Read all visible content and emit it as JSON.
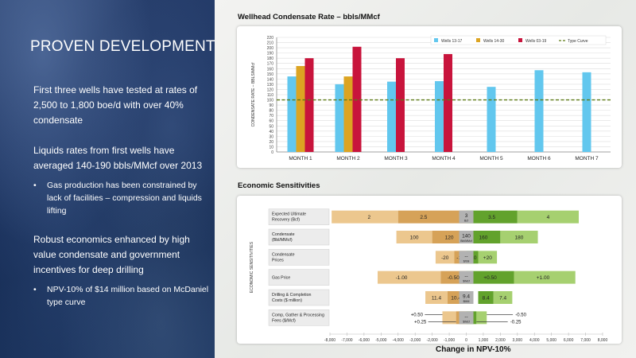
{
  "left": {
    "title": "PROVEN DEVELOPMENT AREA",
    "bullets": [
      {
        "type": "main",
        "text": "First three wells have tested at rates of 2,500 to 1,800 boe/d with over 40% condensate"
      },
      {
        "type": "main",
        "text": "Liquids rates from first wells have averaged 140-190 bbls/MMcf over 2013"
      },
      {
        "type": "sub",
        "text": "Gas production has been constrained by lack of facilities – compression and liquids lifting"
      },
      {
        "type": "main",
        "text": "Robust economics enhanced by high value condensate and government incentives for deep drilling"
      },
      {
        "type": "sub",
        "text": "NPV-10% of $14 million based on McDaniel type curve"
      }
    ]
  },
  "colors": {
    "blue": "#62c7ee",
    "gold": "#dca422",
    "red": "#c8143c",
    "type_curve": "#5d7a14",
    "green_dark": "#62a22c",
    "green_light": "#a6d070",
    "tan_light": "#ecc78e",
    "tan_dark": "#d6a258",
    "gray": "#b2b2b2"
  },
  "chart_data": [
    {
      "type": "bar",
      "title": "Wellhead Condensate Rate – bbls/MMcf",
      "ylabel": "CONDENSATE RATE – BBLS/MMcf",
      "ylim": [
        0,
        220
      ],
      "yticks": [
        0,
        10,
        20,
        30,
        40,
        50,
        60,
        70,
        80,
        90,
        100,
        110,
        120,
        130,
        140,
        150,
        160,
        170,
        180,
        190,
        200,
        210,
        220
      ],
      "categories": [
        "MONTH 1",
        "MONTH 2",
        "MONTH 3",
        "MONTH 4",
        "MONTH 5",
        "MONTH 6",
        "MONTH 7"
      ],
      "series": [
        {
          "name": "Wells 13-17",
          "color": "#62c7ee",
          "values": [
            145,
            130,
            135,
            136,
            125,
            157,
            153
          ]
        },
        {
          "name": "Wells 14-30",
          "color": "#dca422",
          "values": [
            165,
            145,
            null,
            null,
            null,
            null,
            null
          ]
        },
        {
          "name": "Wells 03-19",
          "color": "#c8143c",
          "values": [
            180,
            202,
            180,
            188,
            null,
            null,
            null
          ]
        }
      ],
      "type_curve": {
        "name": "Type Curve",
        "value": 100
      },
      "grid": true,
      "legend": "top-right"
    },
    {
      "type": "bar",
      "subtype": "tornado",
      "title": "Economic Sensitivities",
      "ylabel": "ECONOMIC SENSITIVITIES",
      "xlabel": "Change in NPV-10%",
      "xlim": [
        -8000,
        8000
      ],
      "xticks": [
        -8000,
        -7000,
        -6000,
        -5000,
        -4000,
        -3000,
        -2000,
        -1000,
        0,
        1000,
        2000,
        3000,
        4000,
        5000,
        6000,
        7000,
        8000
      ],
      "xtick_labels": [
        "-8,000",
        "-7,000",
        "-6,000",
        "-5,000",
        "-4,000",
        "-3,000",
        "-2,000",
        "-1,000",
        "0",
        "1,000",
        "2,000",
        "3,000",
        "4,000",
        "5,000",
        "6,000",
        "7,000",
        "8,000"
      ],
      "rows": [
        {
          "label": [
            "Expected Ultimate",
            "Recovery (Bcf)"
          ],
          "segments": [
            {
              "from": -7900,
              "to": -4000,
              "color": "#ecc78e",
              "label": "2",
              "label_at": -5700
            },
            {
              "from": -4000,
              "to": 0,
              "color": "#d6a258",
              "label": "2.5",
              "label_at": -2500
            },
            {
              "from": 0,
              "to": 3000,
              "color": "#62a22c",
              "label": "3.5",
              "label_at": 1500
            },
            {
              "from": 3000,
              "to": 6600,
              "color": "#a6d070",
              "label": "4",
              "label_at": 4800
            }
          ],
          "base": {
            "value": "3",
            "unit": "Bcf"
          }
        },
        {
          "label": [
            "Condensate",
            "(Bbl/MMcf)"
          ],
          "segments": [
            {
              "from": -4100,
              "to": -2000,
              "color": "#ecc78e",
              "label": "100",
              "label_at": -3050
            },
            {
              "from": -2000,
              "to": 0,
              "color": "#d6a258",
              "label": "120",
              "label_at": -1000
            },
            {
              "from": 0,
              "to": 2000,
              "color": "#62a22c",
              "label": "160",
              "label_at": 1000
            },
            {
              "from": 2000,
              "to": 4200,
              "color": "#a6d070",
              "label": "180",
              "label_at": 3100
            }
          ],
          "base": {
            "value": "140",
            "unit": "Bbl/MMcf"
          }
        },
        {
          "label": [
            "Condensate",
            "Prices"
          ],
          "segments": [
            {
              "from": -1800,
              "to": -700,
              "color": "#ecc78e",
              "label": "-20",
              "label_at": -1250
            },
            {
              "from": -700,
              "to": 0,
              "color": "#d6a258",
              "label": "-10",
              "label_at": -350
            },
            {
              "from": 0,
              "to": 700,
              "color": "#62a22c",
              "label": "+10",
              "label_at": 350
            },
            {
              "from": 700,
              "to": 1800,
              "color": "#a6d070",
              "label": "+20",
              "label_at": 1250
            }
          ],
          "base": {
            "value": "--",
            "unit": "$/bbl"
          }
        },
        {
          "label": [
            "Gas Price"
          ],
          "segments": [
            {
              "from": -5200,
              "to": -1500,
              "color": "#ecc78e",
              "label": "-1.00",
              "label_at": -3800
            },
            {
              "from": -1500,
              "to": 0,
              "color": "#d6a258",
              "label": "-0.50",
              "label_at": -750
            },
            {
              "from": 0,
              "to": 2800,
              "color": "#62a22c",
              "label": "+0.50",
              "label_at": 1400
            },
            {
              "from": 2800,
              "to": 6400,
              "color": "#a6d070",
              "label": "+1.00",
              "label_at": 4500
            }
          ],
          "base": {
            "value": "--",
            "unit": "$/Mcf"
          }
        },
        {
          "label": [
            "Drilling & Completion",
            "Costs ($ million)"
          ],
          "segments": [
            {
              "from": -2400,
              "to": -1100,
              "color": "#ecc78e",
              "label": "11.4",
              "label_at": -1750
            },
            {
              "from": -1100,
              "to": -100,
              "color": "#d6a258",
              "label": "10.4",
              "label_at": -600
            },
            {
              "from": 700,
              "to": 1600,
              "color": "#62a22c",
              "label": "8.4",
              "label_at": 1150
            },
            {
              "from": 1600,
              "to": 2700,
              "color": "#a6d070",
              "label": "7.4",
              "label_at": 2150
            }
          ],
          "base": {
            "value": "9.4",
            "unit": "$MM"
          }
        },
        {
          "label": [
            "Comp, Gather & Processing",
            "Fees ($/Mcf)"
          ],
          "segments": [
            {
              "from": -1400,
              "to": -600,
              "color": "#ecc78e",
              "label": "",
              "label_at": -1000
            },
            {
              "from": -600,
              "to": 0,
              "color": "#d6a258",
              "label": "",
              "label_at": -300
            },
            {
              "from": 0,
              "to": 600,
              "color": "#62a22c",
              "label": "",
              "label_at": 300
            },
            {
              "from": 600,
              "to": 1200,
              "color": "#a6d070",
              "label": "",
              "label_at": 900
            }
          ],
          "base": {
            "value": "--",
            "unit": "$/Mcf"
          },
          "callouts": [
            {
              "text": "+0.50",
              "at": -2900,
              "arrow_to": -1400,
              "pos": "top"
            },
            {
              "text": "+0.25",
              "at": -2700,
              "arrow_to": -600,
              "pos": "bottom"
            },
            {
              "text": "-0.50",
              "at": 3200,
              "arrow_to": 1200,
              "pos": "top"
            },
            {
              "text": "-0.25",
              "at": 2900,
              "arrow_to": 600,
              "pos": "bottom"
            }
          ]
        }
      ]
    }
  ]
}
